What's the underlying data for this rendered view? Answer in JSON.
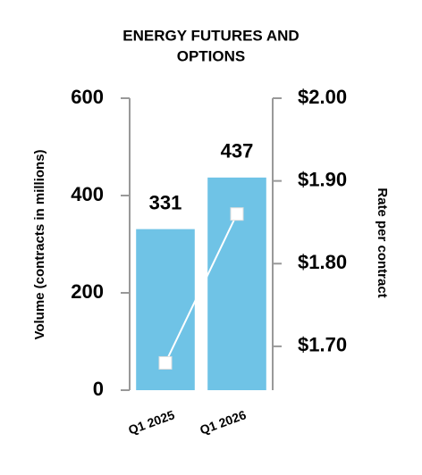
{
  "chart_data": {
    "type": "bar_line",
    "title": [
      "ENERGY FUTURES AND",
      "OPTIONS"
    ],
    "ylabel": "Volume (contracts in millions)",
    "y2label": "Rate per contract",
    "categories": [
      "Q1 2025",
      "Q1 2026"
    ],
    "series": [
      {
        "name": "Volume",
        "type": "bar",
        "color": "#6fc3e6",
        "values": [
          331,
          437
        ]
      },
      {
        "name": "Rate",
        "type": "line",
        "axis": "y2",
        "color": "#ffffff",
        "values": [
          1.68,
          1.86
        ]
      }
    ],
    "ylim": [
      0,
      600
    ],
    "yticks": [
      0,
      200,
      400,
      600
    ],
    "y2lim": [
      1.647,
      2.0
    ],
    "y2ticks": [
      {
        "value": 1.7,
        "label": "$1.70"
      },
      {
        "value": 1.8,
        "label": "$1.80"
      },
      {
        "value": 1.9,
        "label": "$1.90"
      },
      {
        "value": 2.0,
        "label": "$2.00"
      }
    ]
  }
}
